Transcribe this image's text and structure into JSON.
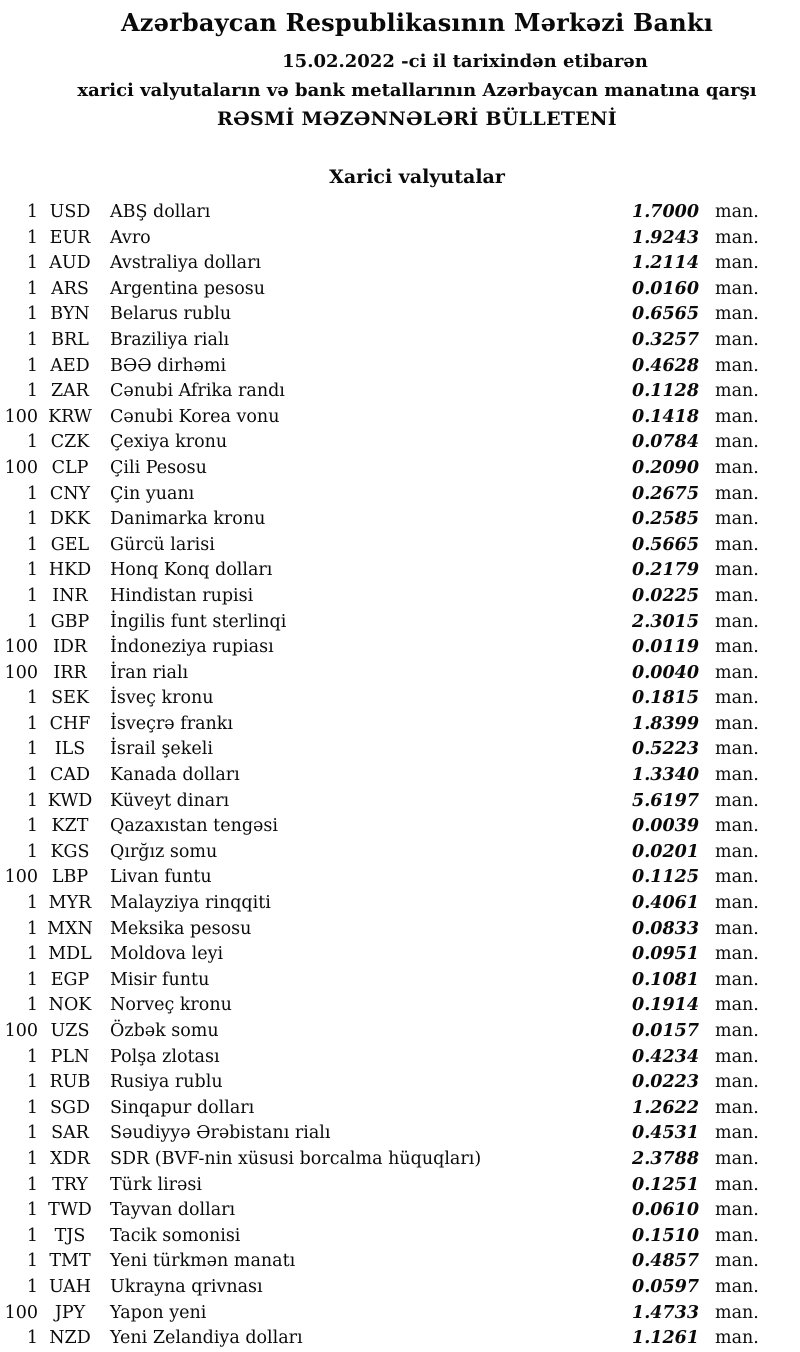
{
  "page": {
    "background_color": "#ffffff",
    "text_color": "#0a0a0a",
    "title": "Azərbaycan Respublikasının Mərkəzi Bankı",
    "date_line": "15.02.2022 -ci il tarixindən etibarən",
    "subtitle": "xarici valyutaların və bank metallarının Azərbaycan manatına qarşı",
    "bulletin_title": "RƏSMİ MƏZƏNNƏLƏRİ BÜLLETENİ",
    "section_title": "Xarici valyutalar",
    "unit_suffix": "man."
  },
  "rates": [
    {
      "qty": "1",
      "code": "USD",
      "name": "ABŞ dolları",
      "rate": "1.7000"
    },
    {
      "qty": "1",
      "code": "EUR",
      "name": "Avro",
      "rate": "1.9243"
    },
    {
      "qty": "1",
      "code": "AUD",
      "name": "Avstraliya dolları",
      "rate": "1.2114"
    },
    {
      "qty": "1",
      "code": "ARS",
      "name": "Argentina pesosu",
      "rate": "0.0160"
    },
    {
      "qty": "1",
      "code": "BYN",
      "name": "Belarus rublu",
      "rate": "0.6565"
    },
    {
      "qty": "1",
      "code": "BRL",
      "name": "Braziliya rialı",
      "rate": "0.3257"
    },
    {
      "qty": "1",
      "code": "AED",
      "name": "BƏƏ dirhəmi",
      "rate": "0.4628"
    },
    {
      "qty": "1",
      "code": "ZAR",
      "name": "Cənubi Afrika randı",
      "rate": "0.1128"
    },
    {
      "qty": "100",
      "code": "KRW",
      "name": "Cənubi Korea vonu",
      "rate": "0.1418"
    },
    {
      "qty": "1",
      "code": "CZK",
      "name": "Çexiya kronu",
      "rate": "0.0784"
    },
    {
      "qty": "100",
      "code": "CLP",
      "name": "Çili Pesosu",
      "rate": "0.2090"
    },
    {
      "qty": "1",
      "code": "CNY",
      "name": "Çin yuanı",
      "rate": "0.2675"
    },
    {
      "qty": "1",
      "code": "DKK",
      "name": "Danimarka kronu",
      "rate": "0.2585"
    },
    {
      "qty": "1",
      "code": "GEL",
      "name": "Gürcü larisi",
      "rate": "0.5665"
    },
    {
      "qty": "1",
      "code": "HKD",
      "name": "Honq Konq dolları",
      "rate": "0.2179"
    },
    {
      "qty": "1",
      "code": "INR",
      "name": "Hindistan rupisi",
      "rate": "0.0225"
    },
    {
      "qty": "1",
      "code": "GBP",
      "name": "İngilis funt sterlinqi",
      "rate": "2.3015"
    },
    {
      "qty": "100",
      "code": "IDR",
      "name": "İndoneziya rupiası",
      "rate": "0.0119"
    },
    {
      "qty": "100",
      "code": "IRR",
      "name": "İran rialı",
      "rate": "0.0040"
    },
    {
      "qty": "1",
      "code": "SEK",
      "name": "İsveç kronu",
      "rate": "0.1815"
    },
    {
      "qty": "1",
      "code": "CHF",
      "name": "İsveçrə frankı",
      "rate": "1.8399"
    },
    {
      "qty": "1",
      "code": "ILS",
      "name": "İsrail şekeli",
      "rate": "0.5223"
    },
    {
      "qty": "1",
      "code": "CAD",
      "name": "Kanada dolları",
      "rate": "1.3340"
    },
    {
      "qty": "1",
      "code": "KWD",
      "name": "Küveyt dinarı",
      "rate": "5.6197"
    },
    {
      "qty": "1",
      "code": "KZT",
      "name": "Qazaxıstan tengəsi",
      "rate": "0.0039"
    },
    {
      "qty": "1",
      "code": "KGS",
      "name": "Qırğız somu",
      "rate": "0.0201"
    },
    {
      "qty": "100",
      "code": "LBP",
      "name": "Livan funtu",
      "rate": "0.1125"
    },
    {
      "qty": "1",
      "code": "MYR",
      "name": "Malayziya rinqqiti",
      "rate": "0.4061"
    },
    {
      "qty": "1",
      "code": "MXN",
      "name": "Meksika pesosu",
      "rate": "0.0833"
    },
    {
      "qty": "1",
      "code": "MDL",
      "name": "Moldova leyi",
      "rate": "0.0951"
    },
    {
      "qty": "1",
      "code": "EGP",
      "name": "Misir funtu",
      "rate": "0.1081"
    },
    {
      "qty": "1",
      "code": "NOK",
      "name": "Norveç kronu",
      "rate": "0.1914"
    },
    {
      "qty": "100",
      "code": "UZS",
      "name": "Özbək somu",
      "rate": "0.0157"
    },
    {
      "qty": "1",
      "code": "PLN",
      "name": "Polşa zlotası",
      "rate": "0.4234"
    },
    {
      "qty": "1",
      "code": "RUB",
      "name": "Rusiya rublu",
      "rate": "0.0223"
    },
    {
      "qty": "1",
      "code": "SGD",
      "name": "Sinqapur dolları",
      "rate": "1.2622"
    },
    {
      "qty": "1",
      "code": "SAR",
      "name": "Səudiyyə Ərəbistanı rialı",
      "rate": "0.4531"
    },
    {
      "qty": "1",
      "code": "XDR",
      "name": "SDR (BVF-nin xüsusi borcalma hüquqları)",
      "rate": "2.3788"
    },
    {
      "qty": "1",
      "code": "TRY",
      "name": "Türk lirəsi",
      "rate": "0.1251"
    },
    {
      "qty": "1",
      "code": "TWD",
      "name": "Tayvan dolları",
      "rate": "0.0610"
    },
    {
      "qty": "1",
      "code": "TJS",
      "name": "Tacik somonisi",
      "rate": "0.1510"
    },
    {
      "qty": "1",
      "code": "TMT",
      "name": "Yeni türkmən manatı",
      "rate": "0.4857"
    },
    {
      "qty": "1",
      "code": "UAH",
      "name": "Ukrayna qrivnası",
      "rate": "0.0597"
    },
    {
      "qty": "100",
      "code": "JPY",
      "name": "Yapon yeni",
      "rate": "1.4733"
    },
    {
      "qty": "1",
      "code": "NZD",
      "name": "Yeni Zelandiya dolları",
      "rate": "1.1261"
    }
  ]
}
